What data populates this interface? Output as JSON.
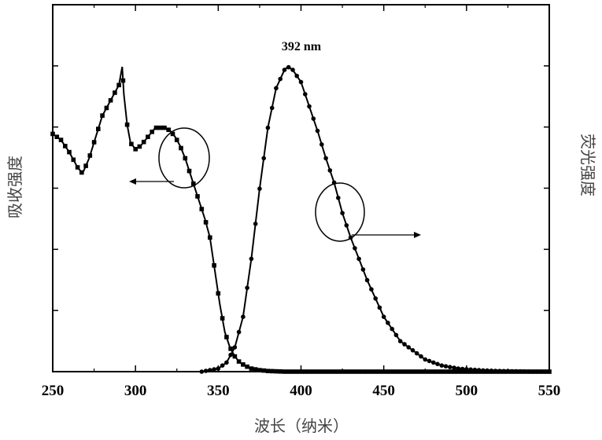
{
  "chart_data": {
    "type": "line",
    "xlabel": "波长（纳米）",
    "ylabel_left": "吸收强度",
    "ylabel_right": "荧光强度",
    "xlim": [
      250,
      550
    ],
    "x_ticks": [
      250,
      300,
      350,
      400,
      450,
      500,
      550
    ],
    "ylim": [
      0,
      1.05
    ],
    "peak_annotation": "392 nm",
    "grid": false,
    "series": [
      {
        "curve": "absorption",
        "axis": "left",
        "marker": "square",
        "x": [
          250,
          255,
          260,
          265,
          268,
          272,
          276,
          280,
          284,
          287,
          290,
          292,
          293,
          295,
          297,
          300,
          303,
          306,
          309,
          312,
          315,
          318,
          321,
          324,
          327,
          330,
          333,
          336,
          339,
          342,
          345,
          348,
          351,
          354,
          357,
          360,
          363,
          366,
          370,
          375,
          380,
          390,
          400,
          450,
          500,
          550
        ],
        "values": [
          0.78,
          0.76,
          0.72,
          0.67,
          0.65,
          0.7,
          0.77,
          0.84,
          0.88,
          0.91,
          0.94,
          1.0,
          0.91,
          0.81,
          0.75,
          0.73,
          0.74,
          0.76,
          0.78,
          0.8,
          0.8,
          0.8,
          0.79,
          0.77,
          0.74,
          0.7,
          0.65,
          0.6,
          0.55,
          0.5,
          0.44,
          0.33,
          0.22,
          0.13,
          0.08,
          0.05,
          0.03,
          0.02,
          0.01,
          0.005,
          0.002,
          0.0,
          0.0,
          0.0,
          0.0,
          0.0
        ]
      },
      {
        "curve": "fluorescence",
        "axis": "right",
        "marker": "circle",
        "x": [
          340,
          345,
          350,
          355,
          360,
          365,
          370,
          375,
          380,
          385,
          390,
          392,
          395,
          400,
          405,
          410,
          415,
          420,
          425,
          430,
          435,
          440,
          445,
          450,
          455,
          460,
          465,
          470,
          475,
          480,
          485,
          490,
          495,
          500,
          505,
          510,
          520,
          530,
          540,
          550
        ],
        "values": [
          0.0,
          0.005,
          0.01,
          0.03,
          0.08,
          0.18,
          0.37,
          0.6,
          0.8,
          0.93,
          0.99,
          1.0,
          0.99,
          0.95,
          0.87,
          0.79,
          0.7,
          0.62,
          0.52,
          0.44,
          0.37,
          0.3,
          0.24,
          0.18,
          0.14,
          0.1,
          0.08,
          0.06,
          0.04,
          0.03,
          0.02,
          0.015,
          0.01,
          0.008,
          0.006,
          0.004,
          0.002,
          0.001,
          0.0,
          0.0
        ]
      }
    ]
  }
}
